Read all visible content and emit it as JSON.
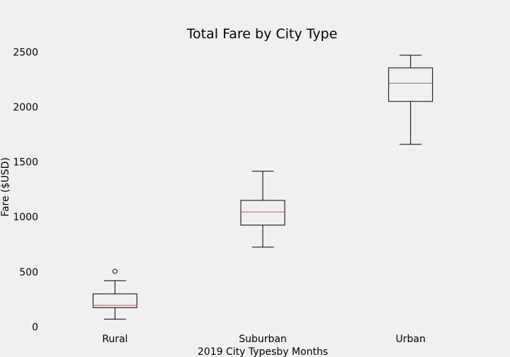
{
  "chart_data": {
    "type": "box",
    "title": "Total Fare by City Type",
    "xlabel": "2019 City Typesby Months",
    "ylabel": "Fare ($USD)",
    "ylim": [
      -10,
      2560
    ],
    "yticks": [
      0,
      500,
      1000,
      1500,
      2000,
      2500
    ],
    "grid": false,
    "categories": [
      "Rural",
      "Suburban",
      "Urban"
    ],
    "boxes": [
      {
        "category": "Rural",
        "whisker_low": 70,
        "q1": 175,
        "median": 195,
        "q3": 300,
        "whisker_high": 420,
        "outliers": [
          505
        ]
      },
      {
        "category": "Suburban",
        "whisker_low": 725,
        "q1": 925,
        "median": 1045,
        "q3": 1150,
        "whisker_high": 1415,
        "outliers": []
      },
      {
        "category": "Urban",
        "whisker_low": 1660,
        "q1": 2050,
        "median": 2215,
        "q3": 2355,
        "whisker_high": 2470,
        "outliers": []
      }
    ],
    "colors": {
      "box": "#000000",
      "median": "#e24a33",
      "background": "#f0f0f0"
    }
  }
}
